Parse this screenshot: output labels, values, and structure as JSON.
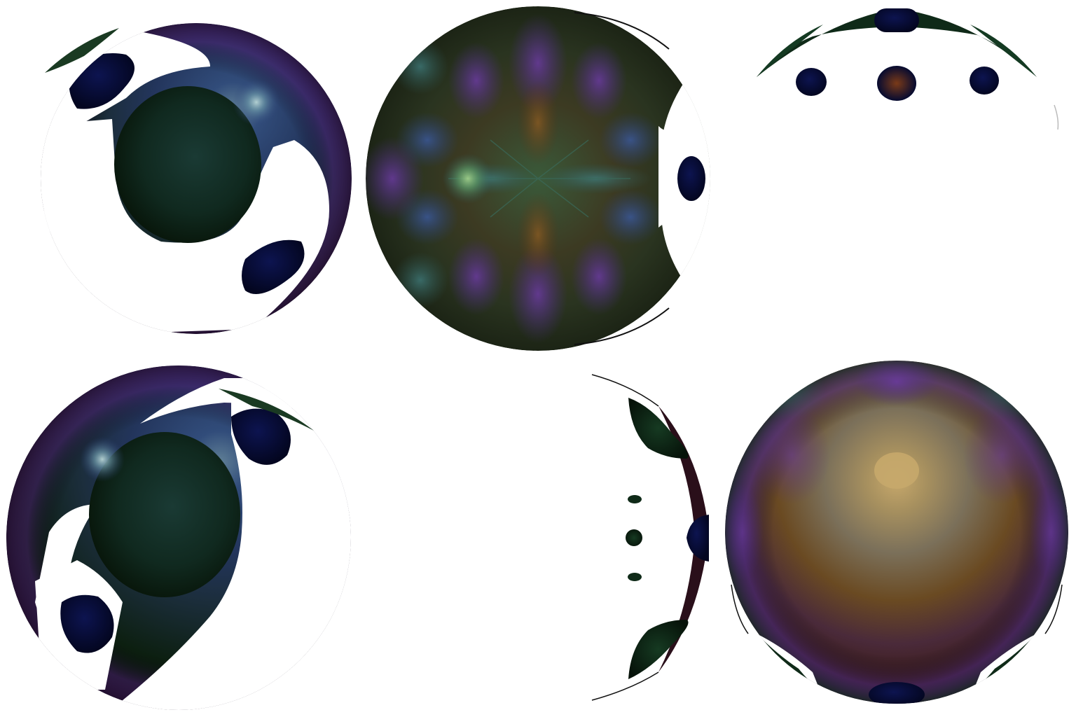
{
  "palette": {
    "background": "#ffffff",
    "deep_navy": "#050a30",
    "dark_green": "#0f2a18",
    "teal": "#2f5a5a",
    "blue": "#2b3f78",
    "violet": "#5a2a86",
    "brown": "#5a3414",
    "gold": "#b79a62",
    "green_glow": "#5c9a68",
    "stroke": "#111111"
  },
  "tiles": [
    {
      "name": "tile-top-left",
      "variant": "swirl-right"
    },
    {
      "name": "tile-top-center",
      "variant": "radial-star"
    },
    {
      "name": "tile-top-right",
      "variant": "cap-spots"
    },
    {
      "name": "tile-bottom-left",
      "variant": "swirl-left"
    },
    {
      "name": "tile-bottom-center",
      "variant": "side-spots"
    },
    {
      "name": "tile-bottom-right",
      "variant": "warm-sphere"
    }
  ]
}
